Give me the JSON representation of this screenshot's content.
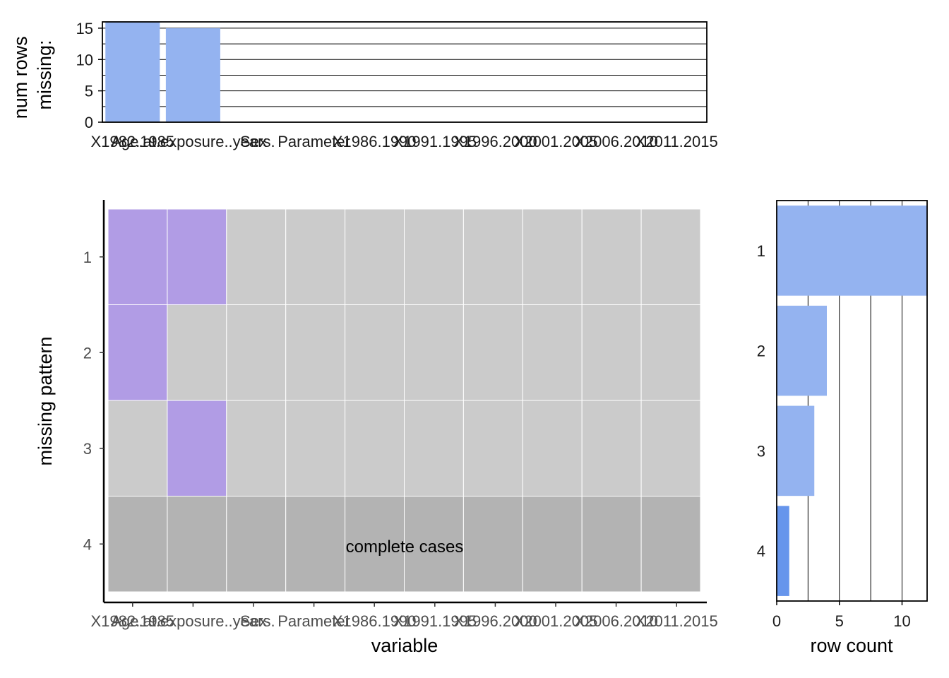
{
  "chart_data": [
    {
      "id": "missing-count-bars",
      "type": "bar",
      "ylabel_lines": [
        "num rows",
        "missing:"
      ],
      "categories": [
        "X1982.1985",
        "Age.at.exposure..years.",
        "Sex",
        "Parameter",
        "X1986.1990",
        "X1991.1995",
        "X1996.2000",
        "X2001.2005",
        "X2006.2010",
        "X2011.2015"
      ],
      "values": [
        16,
        15,
        0,
        0,
        0,
        0,
        0,
        0,
        0,
        0
      ],
      "ylim": [
        0,
        16
      ],
      "y_ticks": [
        0,
        5,
        10,
        15
      ],
      "y_tick_labels": [
        "0",
        "5",
        "10",
        "15"
      ],
      "y_gridlines": [
        0,
        2.5,
        5,
        7.5,
        10,
        12.5,
        15
      ],
      "bar_color": "#94b3f0"
    },
    {
      "id": "missing-pattern-tiles",
      "type": "heatmap",
      "xlabel": "variable",
      "ylabel": "missing pattern",
      "x_categories": [
        "X1982.1985",
        "Age.at.exposure..years.",
        "Sex",
        "Parameter",
        "X1986.1990",
        "X1991.1995",
        "X1996.2000",
        "X2001.2005",
        "X2006.2010",
        "X2011.2015"
      ],
      "y_categories": [
        "1",
        "2",
        "3",
        "4"
      ],
      "missing_matrix": [
        [
          1,
          1,
          0,
          0,
          0,
          0,
          0,
          0,
          0,
          0
        ],
        [
          1,
          0,
          0,
          0,
          0,
          0,
          0,
          0,
          0,
          0
        ],
        [
          0,
          1,
          0,
          0,
          0,
          0,
          0,
          0,
          0,
          0
        ],
        [
          0,
          0,
          0,
          0,
          0,
          0,
          0,
          0,
          0,
          0
        ]
      ],
      "complete_cases_row": 4,
      "annotation": "complete cases",
      "colors": {
        "missing": "#b19ce5",
        "present": "#cbcbcb",
        "complete": "#b3b3b3",
        "tile_border": "#ffffff"
      }
    },
    {
      "id": "row-count-bars",
      "type": "bar",
      "orientation": "horizontal",
      "xlabel": "row count",
      "categories": [
        "1",
        "2",
        "3",
        "4"
      ],
      "values": [
        12,
        4,
        3,
        1
      ],
      "xlim": [
        0,
        12
      ],
      "x_ticks": [
        0,
        5,
        10
      ],
      "x_tick_labels": [
        "0",
        "5",
        "10"
      ],
      "x_gridlines": [
        2.5,
        5,
        7.5,
        10
      ],
      "bar_colors": [
        "#94b3f0",
        "#94b3f0",
        "#94b3f0",
        "#6695ec"
      ]
    }
  ]
}
